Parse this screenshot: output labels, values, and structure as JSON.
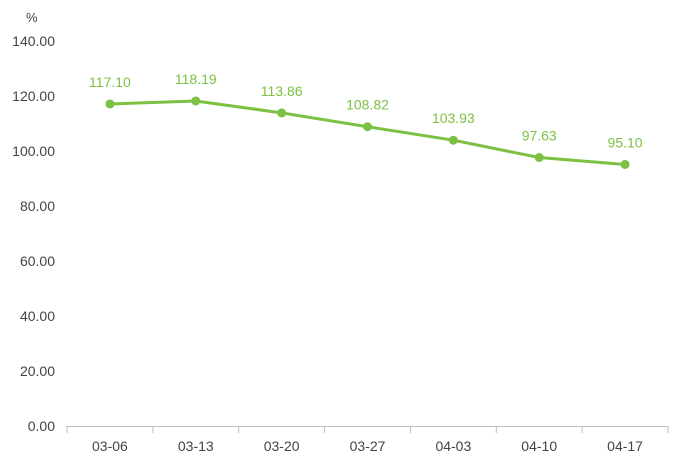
{
  "chart_data": {
    "type": "line",
    "title": "",
    "xlabel": "",
    "ylabel": "%",
    "categories": [
      "03-06",
      "03-13",
      "03-20",
      "03-27",
      "04-03",
      "04-10",
      "04-17"
    ],
    "series": [
      {
        "values": [
          117.1,
          118.19,
          113.86,
          108.82,
          103.93,
          97.63,
          95.1
        ],
        "labels": [
          "117.10",
          "118.19",
          "113.86",
          "108.82",
          "103.93",
          "97.63",
          "95.10"
        ]
      }
    ],
    "y_ticks": [
      "0.00",
      "20.00",
      "40.00",
      "60.00",
      "80.00",
      "100.00",
      "120.00",
      "140.00"
    ],
    "ylim": [
      0,
      140
    ],
    "grid": false,
    "legend": "none",
    "colors": {
      "series": "#7cc142",
      "axis": "#bfbfbf",
      "text": "#444444"
    }
  }
}
